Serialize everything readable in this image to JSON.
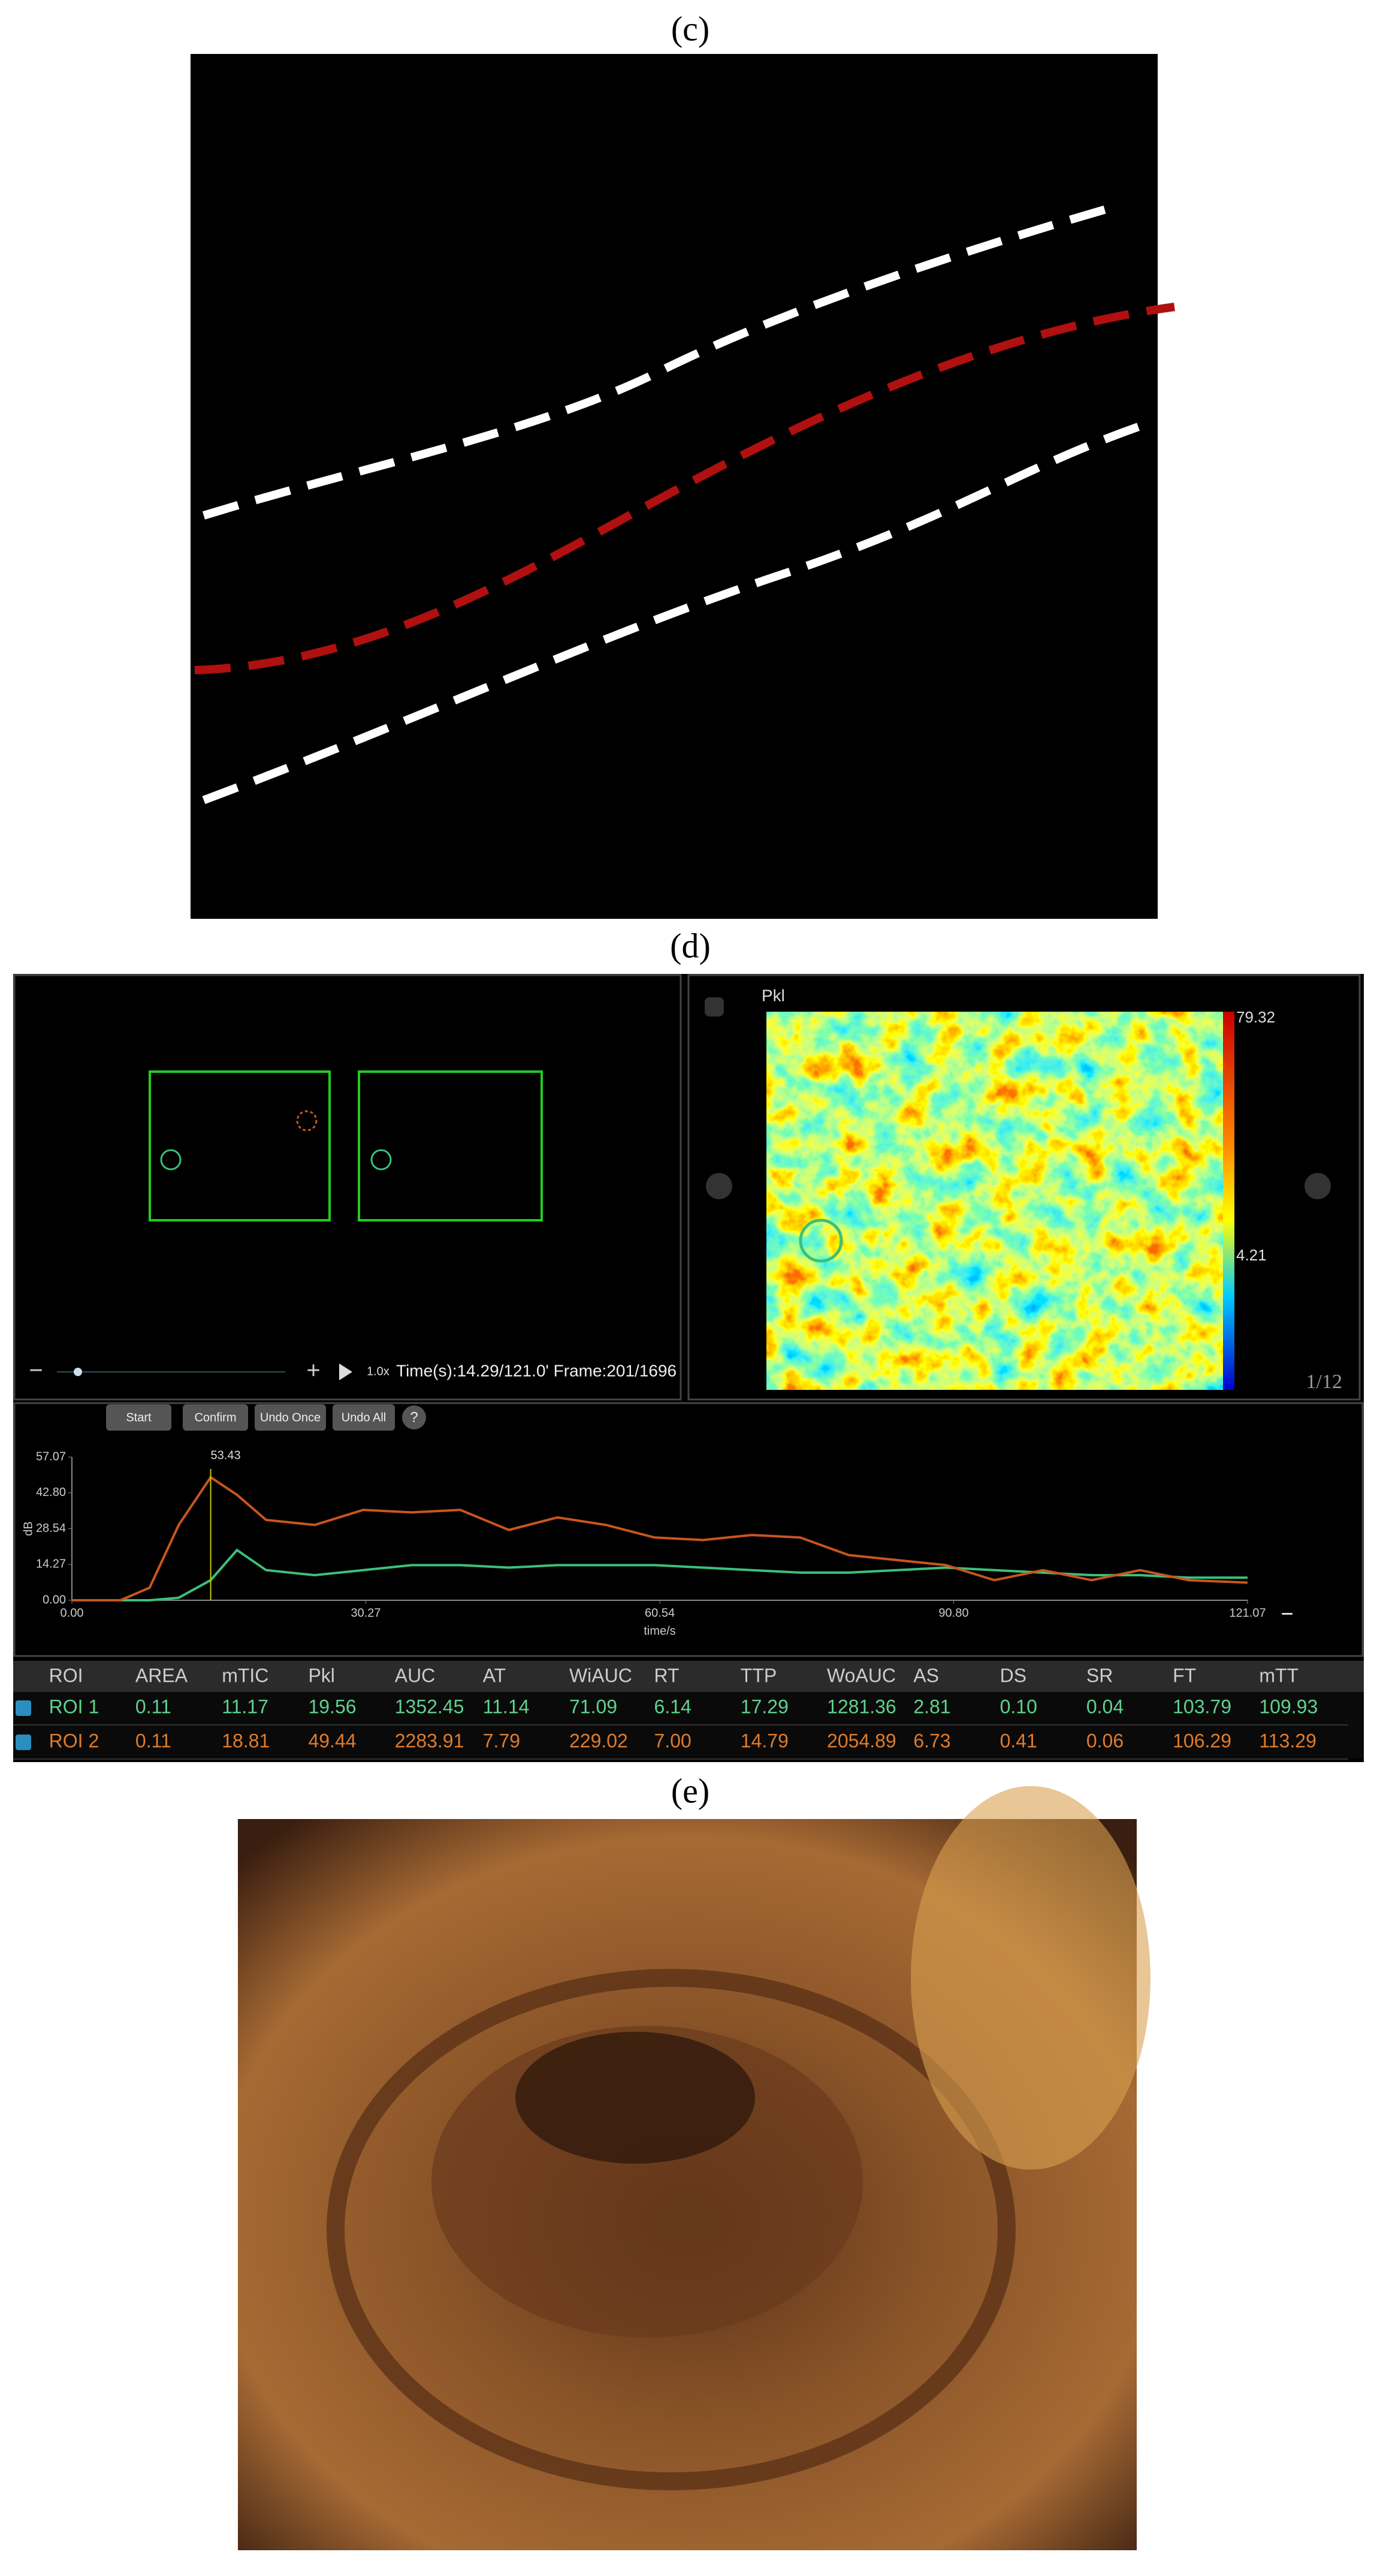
{
  "labels": [
    "(c)",
    "(d)",
    "(e)"
  ],
  "software": {
    "buttons": [
      "Start",
      "Confirm",
      "Undo Once",
      "Undo All",
      "?"
    ],
    "playback": {
      "speed": "1.0x",
      "status": "Time(s):14.29/121.0' Frame:201/1696"
    },
    "parametric_map": {
      "title": "Pkl",
      "max": 79.32,
      "min": 4.21,
      "page": "1/12"
    }
  },
  "tic": {
    "type": "line",
    "ylabel": "dB",
    "xlabel": "time/s",
    "peak_label": 53.43,
    "xlim": [
      0,
      121.07
    ],
    "ylim": [
      0,
      57.07
    ],
    "xticks": [
      {
        "value": 0,
        "label": "0.00"
      },
      30.27,
      60.54,
      {
        "value": 90.8,
        "label": "90.80"
      },
      121.07
    ],
    "yticks": [
      {
        "value": 0,
        "label": "0.00"
      },
      14.27,
      28.54,
      {
        "value": 42.8,
        "label": "42.80"
      },
      57.07
    ],
    "x": [
      0,
      5,
      8,
      11,
      14.29,
      17,
      20,
      25,
      30,
      35,
      40,
      45,
      50,
      55,
      60,
      65,
      70,
      75,
      80,
      85,
      90,
      95,
      100,
      105,
      110,
      115,
      121.07
    ],
    "series": [
      {
        "name": "ROI 1",
        "color": "#3cc07a",
        "values": [
          0,
          0,
          0,
          1,
          8,
          20,
          12,
          10,
          12,
          14,
          14,
          13,
          14,
          14,
          14,
          13,
          12,
          11,
          11,
          12,
          13,
          12,
          11,
          10,
          10,
          9,
          9
        ]
      },
      {
        "name": "ROI 2",
        "color": "#c8561e",
        "values": [
          0,
          0,
          5,
          30,
          49,
          42,
          32,
          30,
          36,
          35,
          36,
          28,
          33,
          30,
          25,
          24,
          26,
          25,
          18,
          16,
          14,
          8,
          12,
          8,
          12,
          8,
          7
        ]
      }
    ]
  },
  "table": {
    "header": [
      "ROI",
      "AREA",
      "mTIC",
      "Pkl",
      "AUC",
      "AT",
      "WiAUC",
      "RT",
      "TTP",
      "WoAUC",
      "AS",
      "DS",
      "SR",
      "FT",
      "mTT"
    ],
    "rows": [
      [
        "ROI 1",
        "0.11",
        "11.17",
        "19.56",
        "1352.45",
        "11.14",
        "71.09",
        "6.14",
        "17.29",
        "1281.36",
        "2.81",
        "0.10",
        "0.04",
        "103.79",
        "109.93"
      ],
      [
        "ROI 2",
        "0.11",
        "18.81",
        "49.44",
        "2283.91",
        "7.79",
        "229.02",
        "7.00",
        "14.79",
        "2054.89",
        "6.73",
        "0.41",
        "0.06",
        "106.29",
        "113.29"
      ]
    ]
  }
}
